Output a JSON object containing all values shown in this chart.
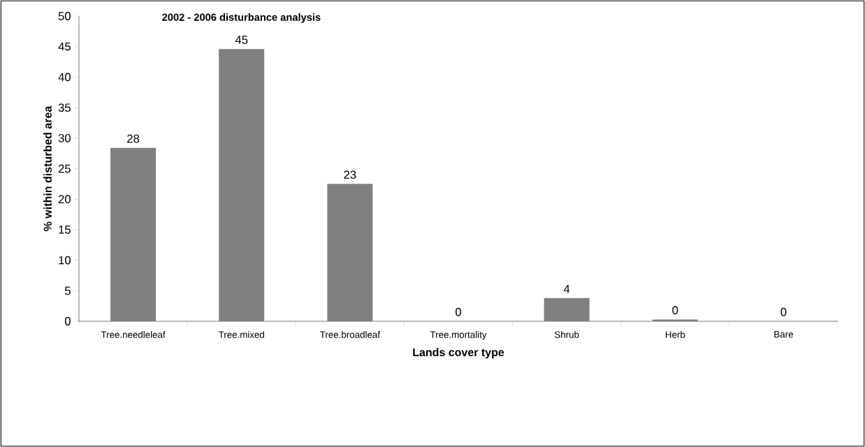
{
  "chart_data": {
    "type": "bar",
    "title": "2002 -  2006 disturbance analysis",
    "xlabel": "Lands cover type",
    "ylabel": "% within disturbed area",
    "categories": [
      "Tree.needleleaf",
      "Tree.mixed",
      "Tree.broadleaf",
      "Tree.mortality",
      "Shrub",
      "Herb",
      "Bare"
    ],
    "values": [
      28.4,
      44.6,
      22.5,
      0,
      3.8,
      0.3,
      0
    ],
    "value_labels": [
      "28",
      "45",
      "23",
      "0",
      "4",
      "0",
      "0"
    ],
    "color": "#808080",
    "ylim": [
      0,
      50
    ],
    "yticks": [
      0,
      5,
      10,
      15,
      20,
      25,
      30,
      35,
      40,
      45,
      50
    ],
    "grid": false
  }
}
